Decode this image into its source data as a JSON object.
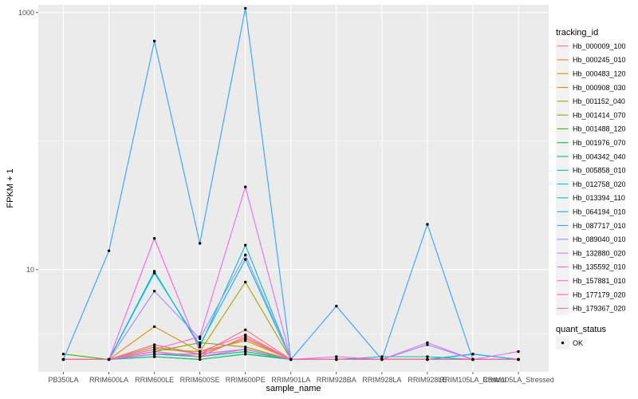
{
  "chart_data": {
    "type": "line",
    "xlabel": "sample_name",
    "ylabel": "FPKM + 1",
    "y_scale": "log10",
    "ylim": [
      1.6,
      1150
    ],
    "y_ticks": [
      10,
      1000
    ],
    "y_tick_labels": [
      "10",
      "1000"
    ],
    "categories": [
      "PB350LA",
      "RRIM600LA",
      "RRIM600LE",
      "RRIM600SE",
      "RRIM600PE",
      "RRIM901LA",
      "RRIM928BA",
      "RRIM928LA",
      "RRIM928LE",
      "RRIM105LA_Control",
      "RRIM105LA_Stressed"
    ],
    "legend_title": "tracking_id",
    "series": [
      {
        "name": "Hb_000009_100",
        "color": "#F8766D",
        "values": [
          2,
          2,
          2.6,
          2.2,
          3.4,
          2,
          2,
          2,
          2,
          2,
          2
        ]
      },
      {
        "name": "Hb_000245_010",
        "color": "#EA8331",
        "values": [
          2,
          2,
          2.3,
          2.1,
          3.0,
          2,
          2,
          2,
          2,
          2,
          2
        ]
      },
      {
        "name": "Hb_000483_120",
        "color": "#D89000",
        "values": [
          2,
          2,
          3.6,
          2.3,
          2.8,
          2,
          2,
          2,
          2,
          2,
          2
        ]
      },
      {
        "name": "Hb_000908_030",
        "color": "#C09B00",
        "values": [
          2,
          2,
          2.5,
          2.2,
          2.9,
          2,
          2,
          2,
          2,
          2,
          2
        ]
      },
      {
        "name": "Hb_001152_040",
        "color": "#A3A500",
        "values": [
          2,
          2,
          2.4,
          2.3,
          8.0,
          2,
          2,
          2,
          2,
          2,
          2
        ]
      },
      {
        "name": "Hb_001414_070",
        "color": "#7CAE00",
        "values": [
          2,
          2,
          2.3,
          2.7,
          2.5,
          2,
          2,
          2,
          2,
          2,
          2
        ]
      },
      {
        "name": "Hb_001488_120",
        "color": "#39B600",
        "values": [
          2.2,
          2,
          2.1,
          2.0,
          2.2,
          2,
          2,
          2,
          2,
          2,
          2
        ]
      },
      {
        "name": "Hb_001976_070",
        "color": "#00BB4E",
        "values": [
          2,
          2,
          2.2,
          2.1,
          2.3,
          2,
          2,
          2,
          2,
          2,
          2
        ]
      },
      {
        "name": "Hb_004342_040",
        "color": "#00BF7D",
        "values": [
          2,
          2,
          2.1,
          2.0,
          2.2,
          2,
          2,
          2,
          2,
          2,
          2
        ]
      },
      {
        "name": "Hb_005858_010",
        "color": "#00C1A3",
        "values": [
          2,
          2,
          2.2,
          2.1,
          2.3,
          2,
          2,
          2.1,
          2.1,
          2,
          2
        ]
      },
      {
        "name": "Hb_012758_020",
        "color": "#00BFC4",
        "values": [
          2,
          2,
          9.7,
          2.5,
          15.5,
          2,
          2,
          2,
          2,
          2,
          2
        ]
      },
      {
        "name": "Hb_013394_110",
        "color": "#00BAE0",
        "values": [
          2,
          2,
          9.4,
          2.6,
          12.0,
          2,
          2,
          2,
          2,
          2.2,
          2
        ]
      },
      {
        "name": "Hb_064194_010",
        "color": "#00B0F6",
        "values": [
          2,
          2,
          2.2,
          2.2,
          2.4,
          2,
          2,
          2,
          2,
          2.2,
          2
        ]
      },
      {
        "name": "Hb_087717_010",
        "color": "#35A2FF",
        "values": [
          2,
          14.0,
          600,
          16.0,
          1080,
          2,
          5.2,
          2,
          22.5,
          2,
          2
        ]
      },
      {
        "name": "Hb_089040_010",
        "color": "#9590FF",
        "values": [
          2,
          2,
          6.8,
          2.9,
          13.0,
          2,
          2,
          2,
          2.6,
          2,
          2
        ]
      },
      {
        "name": "Hb_132880_020",
        "color": "#C77CFF",
        "values": [
          2,
          2,
          2.2,
          2.2,
          2.4,
          2,
          2,
          2,
          2,
          2,
          2
        ]
      },
      {
        "name": "Hb_135592_010",
        "color": "#E76BF3",
        "values": [
          2,
          2,
          2.4,
          3.0,
          44.0,
          2,
          2.1,
          2,
          2.7,
          2,
          2.3
        ]
      },
      {
        "name": "Hb_157881_010",
        "color": "#FA62DB",
        "values": [
          2,
          2,
          17.5,
          2.3,
          3.1,
          2,
          2,
          2,
          2,
          2,
          2
        ]
      },
      {
        "name": "Hb_177179_020",
        "color": "#FF62BC",
        "values": [
          2,
          2,
          2.3,
          2.1,
          2.4,
          2,
          2,
          2,
          2,
          2,
          2
        ]
      },
      {
        "name": "Hb_179367_020",
        "color": "#FF6C91",
        "values": [
          2,
          2,
          2.6,
          2.2,
          2.9,
          2,
          2,
          2,
          2,
          2,
          2
        ]
      }
    ],
    "quant_status": {
      "title": "quant_status",
      "label": "OK"
    },
    "panel_background": "#EBEBEB",
    "grid": true
  }
}
